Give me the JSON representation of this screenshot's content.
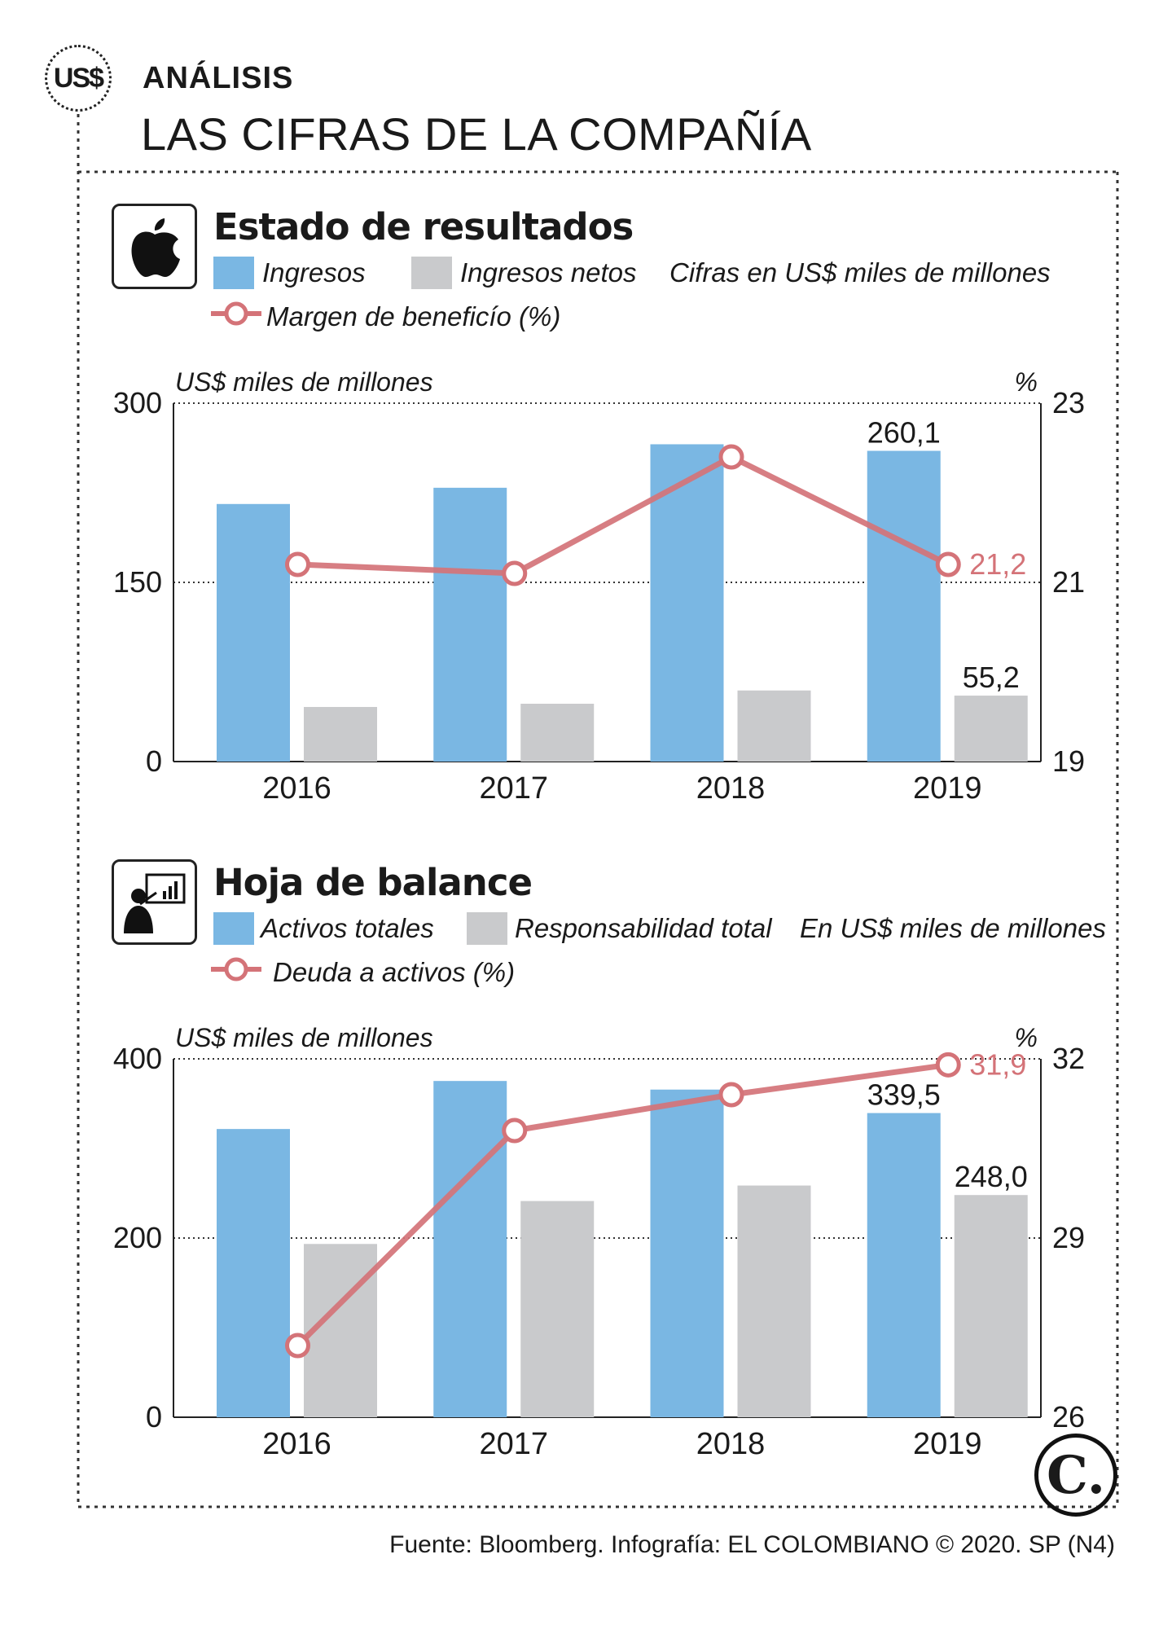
{
  "header": {
    "badge": "US$",
    "kicker": "ANÁLISIS",
    "headline": "LAS CIFRAS DE LA COMPAÑÍA"
  },
  "colors": {
    "bar_primary": "#7ab7e3",
    "bar_secondary": "#c9cacc",
    "line": "#d47378"
  },
  "chart_data": [
    {
      "type": "bar",
      "section_title": "Estado de resultados",
      "icon": "apple-logo-icon",
      "note": "Cifras en US$ miles de millones",
      "ylabel": "US$ miles de millones",
      "y2label": "%",
      "categories": [
        "2016",
        "2017",
        "2018",
        "2019"
      ],
      "ylim": [
        0,
        300
      ],
      "yticks": [
        "0",
        "150",
        "300"
      ],
      "y2lim": [
        19,
        23
      ],
      "y2ticks": [
        "19",
        "21",
        "23"
      ],
      "series": [
        {
          "name": "Ingresos",
          "kind": "bar",
          "values": [
            215.6,
            229.2,
            265.6,
            260.1
          ]
        },
        {
          "name": "Ingresos netos",
          "kind": "bar",
          "values": [
            45.7,
            48.4,
            59.5,
            55.2
          ]
        },
        {
          "name": "Margen de beneficío (%)",
          "kind": "line",
          "axis": "right",
          "values": [
            21.2,
            21.1,
            22.4,
            21.2
          ]
        }
      ],
      "labels": {
        "primary_last": "260,1",
        "secondary_last": "55,2",
        "line_last": "21,2"
      }
    },
    {
      "type": "bar",
      "section_title": "Hoja de balance",
      "icon": "presenter-chart-icon",
      "note": "En US$ miles de millones",
      "ylabel": "US$ miles de millones",
      "y2label": "%",
      "categories": [
        "2016",
        "2017",
        "2018",
        "2019"
      ],
      "ylim": [
        0,
        400
      ],
      "yticks": [
        "0",
        "200",
        "400"
      ],
      "y2lim": [
        26,
        32
      ],
      "y2ticks": [
        "26",
        "29",
        "32"
      ],
      "series": [
        {
          "name": "Activos totales",
          "kind": "bar",
          "values": [
            321.7,
            375.3,
            365.7,
            339.5
          ]
        },
        {
          "name": "Responsabilidad total",
          "kind": "bar",
          "values": [
            193.4,
            241.3,
            258.6,
            248.0
          ]
        },
        {
          "name": "Deuda a activos (%)",
          "kind": "line",
          "axis": "right",
          "values": [
            27.2,
            30.8,
            31.4,
            31.9
          ]
        }
      ],
      "labels": {
        "primary_last": "339,5",
        "secondary_last": "248,0",
        "line_last": "31,9"
      }
    }
  ],
  "footer": {
    "source": "Fuente: Bloomberg. Infografía: EL COLOMBIANO © 2020. SP (N4)",
    "logo": "C."
  }
}
